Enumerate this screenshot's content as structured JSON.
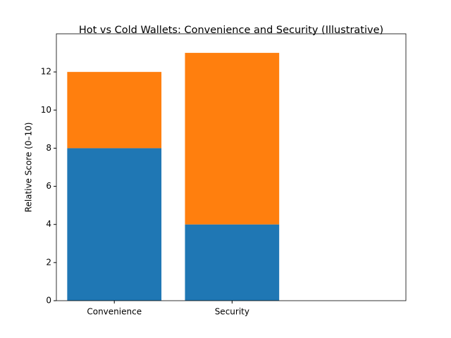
{
  "chart_data": {
    "type": "stacked-bar",
    "title": "Hot vs Cold Wallets: Convenience and Security (Illustrative)",
    "y_label": "Relative Score (0–10)",
    "categories": [
      "Convenience",
      "Security"
    ],
    "series": [
      {
        "color": "#1f77b4",
        "values": [
          8,
          4
        ]
      },
      {
        "color": "#ff7f0e",
        "values": [
          4,
          9
        ]
      }
    ],
    "ylim": [
      0,
      14
    ],
    "yticks": [
      0,
      2,
      4,
      6,
      8,
      10,
      12
    ]
  }
}
